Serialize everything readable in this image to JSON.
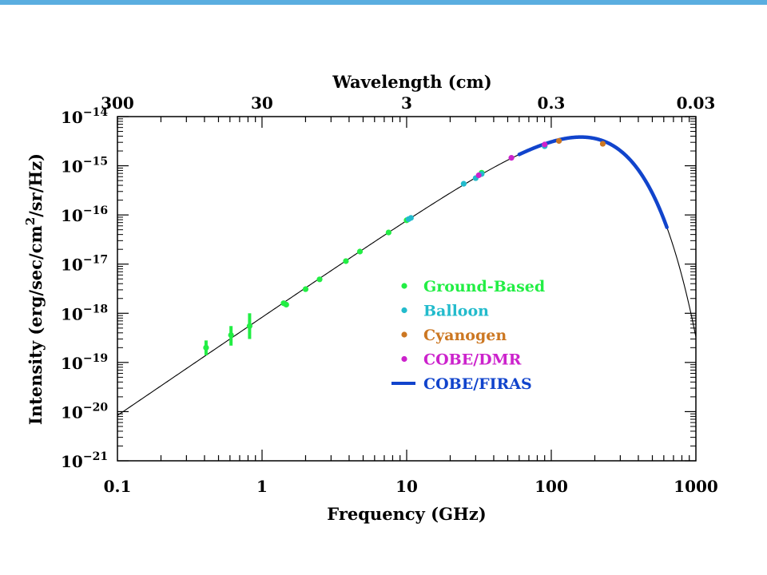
{
  "chart_data": {
    "type": "scatter",
    "x_axis": {
      "label": "Frequency (GHz)",
      "scale": "log",
      "range": [
        0.1,
        1000
      ],
      "ticks": [
        {
          "v": 0.1,
          "t": "0.1"
        },
        {
          "v": 1,
          "t": "1"
        },
        {
          "v": 10,
          "t": "10"
        },
        {
          "v": 100,
          "t": "100"
        },
        {
          "v": 1000,
          "t": "1000"
        }
      ]
    },
    "top_axis": {
      "label": "Wavelength (cm)",
      "scale": "log",
      "ticks": [
        {
          "wl": 300,
          "t": "300"
        },
        {
          "wl": 30,
          "t": "30"
        },
        {
          "wl": 3,
          "t": "3"
        },
        {
          "wl": 0.3,
          "t": "0.3"
        },
        {
          "wl": 0.03,
          "t": "0.03"
        }
      ]
    },
    "y_axis": {
      "label": "Intensity (erg/sec/cm²/sr/Hz)",
      "label_prefix": "Intensity (erg/sec/cm",
      "label_sup": "2",
      "label_suffix": "/sr/Hz)",
      "scale": "log",
      "range": [
        1e-21,
        1e-14
      ],
      "ticks": [
        {
          "e": -14
        },
        {
          "e": -15
        },
        {
          "e": -16
        },
        {
          "e": -17
        },
        {
          "e": -18
        },
        {
          "e": -19
        },
        {
          "e": -20
        },
        {
          "e": -21
        }
      ]
    },
    "grid": false,
    "legend_position": "center-right",
    "theory_curve": {
      "name": "",
      "color": "#000000",
      "temperature_K": 2.725
    },
    "series": [
      {
        "name": "Ground-Based",
        "color": "#22ee44",
        "marker": "dot",
        "points": [
          {
            "x": 0.41,
            "y": 2e-19,
            "ylo": 1.4e-19,
            "yhi": 2.8e-19
          },
          {
            "x": 0.61,
            "y": 3.6e-19,
            "ylo": 2.2e-19,
            "yhi": 5.5e-19
          },
          {
            "x": 0.82,
            "y": 5.5e-19,
            "ylo": 3e-19,
            "yhi": 1e-18
          },
          {
            "x": 1.41,
            "y": 1.6e-18
          },
          {
            "x": 1.47,
            "y": 1.5e-18
          },
          {
            "x": 2.0,
            "y": 3.1e-18
          },
          {
            "x": 2.5,
            "y": 4.9e-18
          },
          {
            "x": 3.8,
            "y": 1.15e-17
          },
          {
            "x": 4.75,
            "y": 1.8e-17
          },
          {
            "x": 7.5,
            "y": 4.4e-17
          },
          {
            "x": 10.0,
            "y": 7.8e-17
          },
          {
            "x": 33.0,
            "y": 7.2e-16
          },
          {
            "x": 90.0,
            "y": 2.6e-15
          }
        ]
      },
      {
        "name": "Balloon",
        "color": "#22bbcc",
        "marker": "dot",
        "points": [
          {
            "x": 10.3,
            "y": 8.2e-17
          },
          {
            "x": 10.7,
            "y": 8.7e-17
          },
          {
            "x": 24.8,
            "y": 4.3e-16
          },
          {
            "x": 30.0,
            "y": 5.6e-16
          },
          {
            "x": 33.0,
            "y": 6.8e-16
          },
          {
            "x": 90.0,
            "y": 2.5e-15
          }
        ]
      },
      {
        "name": "Cyanogen",
        "color": "#cc7722",
        "marker": "dot",
        "points": [
          {
            "x": 113.0,
            "y": 3.2e-15
          },
          {
            "x": 227.0,
            "y": 2.8e-15
          }
        ]
      },
      {
        "name": "COBE/DMR",
        "color": "#cc22cc",
        "marker": "dot",
        "points": [
          {
            "x": 31.5,
            "y": 6.4e-16
          },
          {
            "x": 53.0,
            "y": 1.45e-15
          },
          {
            "x": 90.0,
            "y": 2.7e-15
          }
        ]
      },
      {
        "name": "COBE/FIRAS",
        "color": "#1144cc",
        "marker": "line",
        "x_range": [
          60,
          630
        ]
      }
    ]
  }
}
